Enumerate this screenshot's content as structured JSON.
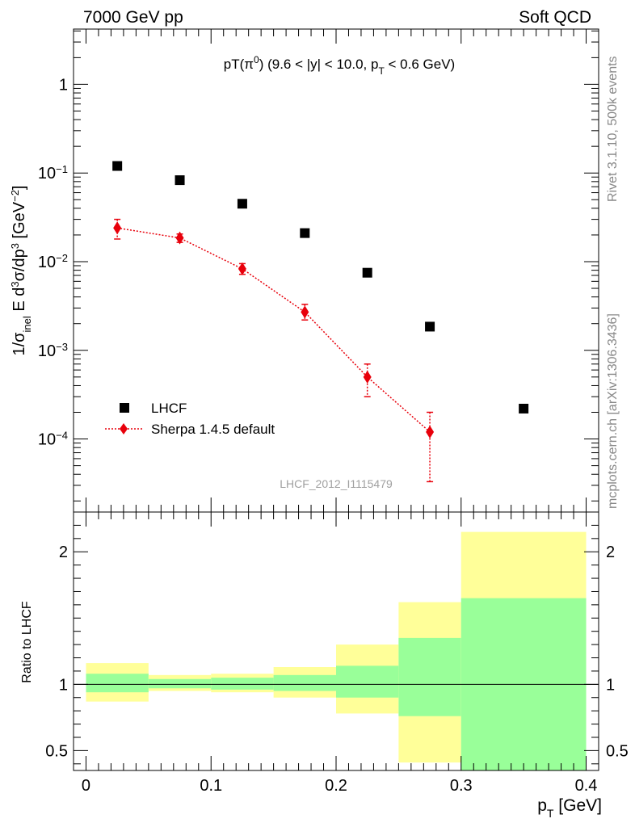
{
  "header": {
    "left": "7000 GeV pp",
    "right": "Soft QCD"
  },
  "side_labels": {
    "rivet": "Rivet 3.1.10,  500k events",
    "mcplots": "mcplots.cern.ch [arXiv:1306.3436]"
  },
  "chart_data": [
    {
      "type": "scatter",
      "title": "pT(π⁰) (9.6 < |y| < 10.0, pT < 0.6 GeV)",
      "ylabel": "1/σinel E d³σ/dp³ [GeV⁻²]",
      "xlabel": "",
      "yscale": "log",
      "ylim": [
        1.5e-05,
        4.2
      ],
      "xlim": [
        -0.01,
        0.41
      ],
      "watermark": "LHCF_2012_I1115479",
      "ytick_labels": [
        "1",
        "10⁻¹",
        "10⁻²",
        "10⁻³",
        "10⁻⁴"
      ],
      "legend_position": "bottom-left",
      "series": [
        {
          "name": "LHCF",
          "marker": "square",
          "color": "#000000",
          "x": [
            0.025,
            0.075,
            0.125,
            0.175,
            0.225,
            0.275,
            0.35
          ],
          "y": [
            0.12,
            0.083,
            0.045,
            0.021,
            0.0075,
            0.00185,
            0.00022
          ]
        },
        {
          "name": "Sherpa 1.4.5 default",
          "marker": "diamond",
          "line": "dotted",
          "color": "#e8000b",
          "x": [
            0.025,
            0.075,
            0.125,
            0.175,
            0.225,
            0.275
          ],
          "y": [
            0.024,
            0.0185,
            0.0083,
            0.0027,
            0.0005,
            0.00012
          ],
          "y_low": [
            0.018,
            0.0165,
            0.0072,
            0.0022,
            0.0003,
            3.3e-05
          ],
          "y_high": [
            0.03,
            0.0205,
            0.0095,
            0.0033,
            0.0007,
            0.0002
          ]
        }
      ]
    },
    {
      "type": "bar",
      "ylabel": "Ratio to LHCF",
      "xlabel": "pT [GeV]",
      "xlim": [
        -0.01,
        0.41
      ],
      "ylim": [
        0.35,
        2.3
      ],
      "xtick_labels": [
        "0",
        "0.1",
        "0.2",
        "0.3",
        "0.4"
      ],
      "ytick_labels": [
        "0.5",
        "1",
        "2"
      ],
      "bins": [
        {
          "x0": 0.0,
          "x1": 0.05,
          "inner": [
            0.94,
            1.08
          ],
          "outer": [
            0.87,
            1.16
          ]
        },
        {
          "x0": 0.05,
          "x1": 0.1,
          "inner": [
            0.97,
            1.04
          ],
          "outer": [
            0.95,
            1.07
          ]
        },
        {
          "x0": 0.1,
          "x1": 0.15,
          "inner": [
            0.96,
            1.05
          ],
          "outer": [
            0.94,
            1.08
          ]
        },
        {
          "x0": 0.15,
          "x1": 0.2,
          "inner": [
            0.95,
            1.07
          ],
          "outer": [
            0.9,
            1.13
          ]
        },
        {
          "x0": 0.2,
          "x1": 0.25,
          "inner": [
            0.9,
            1.14
          ],
          "outer": [
            0.78,
            1.3
          ]
        },
        {
          "x0": 0.25,
          "x1": 0.3,
          "inner": [
            0.76,
            1.35
          ],
          "outer": [
            0.41,
            1.62
          ]
        },
        {
          "x0": 0.3,
          "x1": 0.4,
          "inner": [
            0.35,
            1.65
          ],
          "outer": [
            0.35,
            2.15
          ]
        }
      ],
      "colors": {
        "inner": "#99ff99",
        "outer": "#ffff99"
      },
      "reference": 1.0
    }
  ]
}
